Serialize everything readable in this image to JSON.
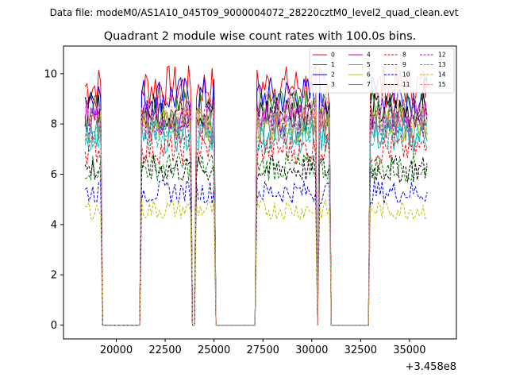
{
  "chart_data": {
    "type": "line",
    "suptitle": "Data file: modeM0/AS1A10_045T09_9000004072_28220cztM0_level2_quad_clean.evt",
    "title": "Quadrant 2 module wise count rates with 100.0s bins.",
    "xlabel": "",
    "ylabel": "",
    "x_offset_label": "+3.458e8",
    "xlim": [
      17300,
      37400
    ],
    "ylim": [
      -0.55,
      11.1
    ],
    "x_ticks": [
      20000,
      22500,
      25000,
      27500,
      30000,
      32500,
      35000
    ],
    "x_tick_labels": [
      "20000",
      "22500",
      "25000",
      "27500",
      "30000",
      "32500",
      "35000"
    ],
    "y_ticks": [
      0,
      2,
      4,
      6,
      8,
      10
    ],
    "y_tick_labels": [
      "0",
      "2",
      "4",
      "6",
      "8",
      "10"
    ],
    "grid": false,
    "legend_position": "top-right",
    "segments": [
      [
        18400,
        19200
      ],
      [
        21300,
        23800
      ],
      [
        24100,
        25000
      ],
      [
        27200,
        30200
      ],
      [
        30400,
        30900
      ],
      [
        33000,
        35900
      ]
    ],
    "series": [
      {
        "name": "0",
        "color": "#ff0000",
        "style": "solid",
        "level": 9.5
      },
      {
        "name": "1",
        "color": "#008000",
        "style": "solid",
        "level": 8.6
      },
      {
        "name": "2",
        "color": "#0000ff",
        "style": "solid",
        "level": 9.1
      },
      {
        "name": "3",
        "color": "#000000",
        "style": "solid",
        "level": 8.5
      },
      {
        "name": "4",
        "color": "#bf00bf",
        "style": "solid",
        "level": 8.3
      },
      {
        "name": "5",
        "color": "#00bfbf",
        "style": "solid",
        "level": 7.5
      },
      {
        "name": "6",
        "color": "#bfbf00",
        "style": "solid",
        "level": 8.0
      },
      {
        "name": "7",
        "color": "#808080",
        "style": "solid",
        "level": 7.9
      },
      {
        "name": "8",
        "color": "#ff0000",
        "style": "dashed",
        "level": 7.0
      },
      {
        "name": "9",
        "color": "#008000",
        "style": "dashed",
        "level": 6.3
      },
      {
        "name": "10",
        "color": "#0000ff",
        "style": "dashed",
        "level": 5.3
      },
      {
        "name": "11",
        "color": "#000000",
        "style": "dashed",
        "level": 6.2
      },
      {
        "name": "12",
        "color": "#bf00bf",
        "style": "dashed",
        "level": 8.1
      },
      {
        "name": "13",
        "color": "#00bfbf",
        "style": "dashed",
        "level": 7.7
      },
      {
        "name": "14",
        "color": "#bfbf00",
        "style": "dashed",
        "level": 4.6
      },
      {
        "name": "15",
        "color": "#ff8080",
        "style": "dashed",
        "level": 8.6
      }
    ]
  }
}
